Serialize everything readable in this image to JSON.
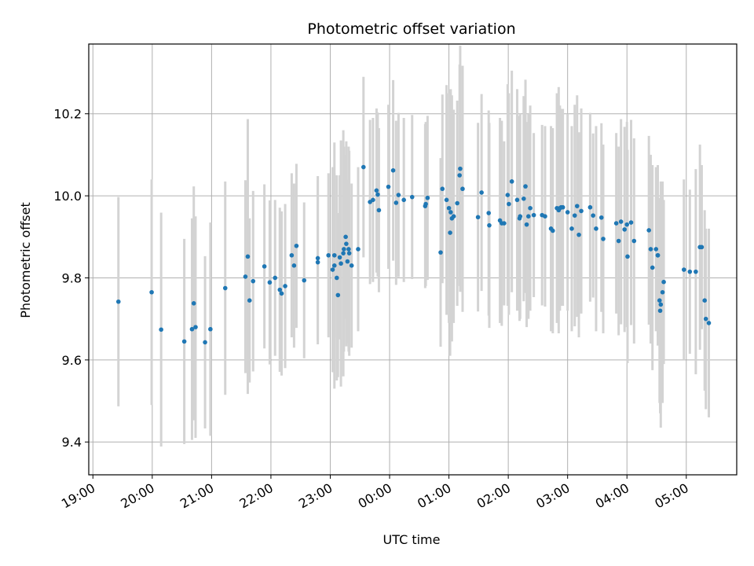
{
  "chart_data": {
    "type": "scatter",
    "title": "Photometric offset variation",
    "xlabel": "UTC time",
    "ylabel": "Photometric offset",
    "grid": true,
    "x_units": "hours after 19:00 UTC",
    "xlim": [
      -0.07,
      10.85
    ],
    "ylim": [
      9.32,
      10.37
    ],
    "x_ticks": [
      {
        "value": 0,
        "label": "19:00"
      },
      {
        "value": 1,
        "label": "20:00"
      },
      {
        "value": 2,
        "label": "21:00"
      },
      {
        "value": 3,
        "label": "22:00"
      },
      {
        "value": 4,
        "label": "23:00"
      },
      {
        "value": 5,
        "label": "00:00"
      },
      {
        "value": 6,
        "label": "01:00"
      },
      {
        "value": 7,
        "label": "02:00"
      },
      {
        "value": 8,
        "label": "03:00"
      },
      {
        "value": 9,
        "label": "04:00"
      },
      {
        "value": 10,
        "label": "05:00"
      }
    ],
    "y_ticks": [
      {
        "value": 9.4,
        "label": "9.4"
      },
      {
        "value": 9.6,
        "label": "9.6"
      },
      {
        "value": 9.8,
        "label": "9.8"
      },
      {
        "value": 10.0,
        "label": "10.0"
      },
      {
        "value": 10.2,
        "label": "10.2"
      }
    ],
    "colors": {
      "marker": "#1f77b4",
      "errorbar": "#d3d3d3",
      "grid": "#b0b0b0"
    },
    "points": [
      [
        0.43,
        9.742,
        0.255
      ],
      [
        0.99,
        9.765,
        0.275
      ],
      [
        1.15,
        9.674,
        0.285
      ],
      [
        1.54,
        9.645,
        0.25
      ],
      [
        1.67,
        9.675,
        0.27
      ],
      [
        1.7,
        9.738,
        0.285
      ],
      [
        1.73,
        9.68,
        0.27
      ],
      [
        1.89,
        9.643,
        0.21
      ],
      [
        1.98,
        9.675,
        0.26
      ],
      [
        2.23,
        9.775,
        0.26
      ],
      [
        2.57,
        9.803,
        0.235
      ],
      [
        2.61,
        9.852,
        0.335
      ],
      [
        2.64,
        9.745,
        0.2
      ],
      [
        2.7,
        9.792,
        0.22
      ],
      [
        2.89,
        9.828,
        0.2
      ],
      [
        2.98,
        9.789,
        0.2
      ],
      [
        3.07,
        9.8,
        0.19
      ],
      [
        3.15,
        9.771,
        0.2
      ],
      [
        3.18,
        9.762,
        0.2
      ],
      [
        3.24,
        9.78,
        0.2
      ],
      [
        3.35,
        9.855,
        0.2
      ],
      [
        3.39,
        9.83,
        0.2
      ],
      [
        3.43,
        9.878,
        0.2
      ],
      [
        3.56,
        9.794,
        0.19
      ],
      [
        3.79,
        9.848,
        0.2
      ],
      [
        3.79,
        9.838,
        0.2
      ],
      [
        3.97,
        9.855,
        0.2
      ],
      [
        4.04,
        9.82,
        0.25
      ],
      [
        4.07,
        9.855,
        0.2
      ],
      [
        4.07,
        9.83,
        0.3
      ],
      [
        4.11,
        9.8,
        0.25
      ],
      [
        4.13,
        9.758,
        0.2
      ],
      [
        4.16,
        9.85,
        0.2
      ],
      [
        4.18,
        9.835,
        0.3
      ],
      [
        4.22,
        9.86,
        0.3
      ],
      [
        4.23,
        9.87,
        0.25
      ],
      [
        4.26,
        9.9,
        0.2
      ],
      [
        4.27,
        9.883,
        0.25
      ],
      [
        4.29,
        9.84,
        0.2
      ],
      [
        4.31,
        9.87,
        0.25
      ],
      [
        4.32,
        9.86,
        0.25
      ],
      [
        4.36,
        9.83,
        0.2
      ],
      [
        4.47,
        9.87,
        0.2
      ],
      [
        4.56,
        10.07,
        0.22
      ],
      [
        4.67,
        9.985,
        0.2
      ],
      [
        4.72,
        9.99,
        0.2
      ],
      [
        4.78,
        10.013,
        0.2
      ],
      [
        4.8,
        10.003,
        0.2
      ],
      [
        4.82,
        9.965,
        0.2
      ],
      [
        4.98,
        10.022,
        0.2
      ],
      [
        5.06,
        10.062,
        0.22
      ],
      [
        5.11,
        9.983,
        0.2
      ],
      [
        5.15,
        10.002,
        0.2
      ],
      [
        5.24,
        9.99,
        0.2
      ],
      [
        5.38,
        9.997,
        0.2
      ],
      [
        5.6,
        9.975,
        0.2
      ],
      [
        5.61,
        9.98,
        0.2
      ],
      [
        5.64,
        9.995,
        0.2
      ],
      [
        5.86,
        9.862,
        0.23
      ],
      [
        5.89,
        10.017,
        0.23
      ],
      [
        5.96,
        9.99,
        0.28
      ],
      [
        6.0,
        9.97,
        0.28
      ],
      [
        6.02,
        9.91,
        0.3
      ],
      [
        6.03,
        9.96,
        0.3
      ],
      [
        6.05,
        9.945,
        0.3
      ],
      [
        6.08,
        9.95,
        0.26
      ],
      [
        6.14,
        9.982,
        0.25
      ],
      [
        6.18,
        10.05,
        0.27
      ],
      [
        6.19,
        10.066,
        0.3
      ],
      [
        6.23,
        10.017,
        0.3
      ],
      [
        6.49,
        9.948,
        0.23
      ],
      [
        6.55,
        10.008,
        0.24
      ],
      [
        6.67,
        9.958,
        0.25
      ],
      [
        6.68,
        9.928,
        0.25
      ],
      [
        6.86,
        9.94,
        0.25
      ],
      [
        6.89,
        9.933,
        0.25
      ],
      [
        6.93,
        9.933,
        0.2
      ],
      [
        6.99,
        10.002,
        0.27
      ],
      [
        7.01,
        9.98,
        0.27
      ],
      [
        7.06,
        10.035,
        0.27
      ],
      [
        7.15,
        9.99,
        0.27
      ],
      [
        7.19,
        9.945,
        0.25
      ],
      [
        7.2,
        9.95,
        0.25
      ],
      [
        7.26,
        9.993,
        0.25
      ],
      [
        7.29,
        10.023,
        0.26
      ],
      [
        7.31,
        9.93,
        0.25
      ],
      [
        7.34,
        9.95,
        0.25
      ],
      [
        7.37,
        9.97,
        0.25
      ],
      [
        7.43,
        9.953,
        0.2
      ],
      [
        7.57,
        9.953,
        0.22
      ],
      [
        7.62,
        9.95,
        0.22
      ],
      [
        7.72,
        9.92,
        0.25
      ],
      [
        7.75,
        9.915,
        0.25
      ],
      [
        7.82,
        9.97,
        0.28
      ],
      [
        7.85,
        9.965,
        0.3
      ],
      [
        7.87,
        9.97,
        0.25
      ],
      [
        7.89,
        9.972,
        0.24
      ],
      [
        7.92,
        9.972,
        0.24
      ],
      [
        8.0,
        9.96,
        0.24
      ],
      [
        8.07,
        9.92,
        0.25
      ],
      [
        8.12,
        9.952,
        0.27
      ],
      [
        8.16,
        9.975,
        0.27
      ],
      [
        8.19,
        9.905,
        0.25
      ],
      [
        8.23,
        9.963,
        0.25
      ],
      [
        8.38,
        9.972,
        0.23
      ],
      [
        8.43,
        9.952,
        0.2
      ],
      [
        8.48,
        9.92,
        0.25
      ],
      [
        8.57,
        9.947,
        0.23
      ],
      [
        8.6,
        9.895,
        0.23
      ],
      [
        8.82,
        9.933,
        0.22
      ],
      [
        8.86,
        9.89,
        0.23
      ],
      [
        8.9,
        9.937,
        0.25
      ],
      [
        8.96,
        9.918,
        0.25
      ],
      [
        9.0,
        9.93,
        0.25
      ],
      [
        9.01,
        9.852,
        0.26
      ],
      [
        9.07,
        9.935,
        0.25
      ],
      [
        9.12,
        9.89,
        0.25
      ],
      [
        9.37,
        9.916,
        0.23
      ],
      [
        9.4,
        9.87,
        0.23
      ],
      [
        9.43,
        9.825,
        0.25
      ],
      [
        9.49,
        9.87,
        0.2
      ],
      [
        9.52,
        9.855,
        0.2
      ],
      [
        9.52,
        9.855,
        0.22
      ],
      [
        9.55,
        9.745,
        0.25
      ],
      [
        9.56,
        9.72,
        0.25
      ],
      [
        9.57,
        9.735,
        0.3
      ],
      [
        9.6,
        9.765,
        0.27
      ],
      [
        9.62,
        9.79,
        0.2
      ],
      [
        9.96,
        9.82,
        0.22
      ],
      [
        10.06,
        9.815,
        0.2
      ],
      [
        10.16,
        9.815,
        0.25
      ],
      [
        10.23,
        9.875,
        0.25
      ],
      [
        10.26,
        9.875,
        0.2
      ],
      [
        10.31,
        9.745,
        0.22
      ],
      [
        10.33,
        9.7,
        0.22
      ],
      [
        10.38,
        9.69,
        0.23
      ]
    ]
  }
}
